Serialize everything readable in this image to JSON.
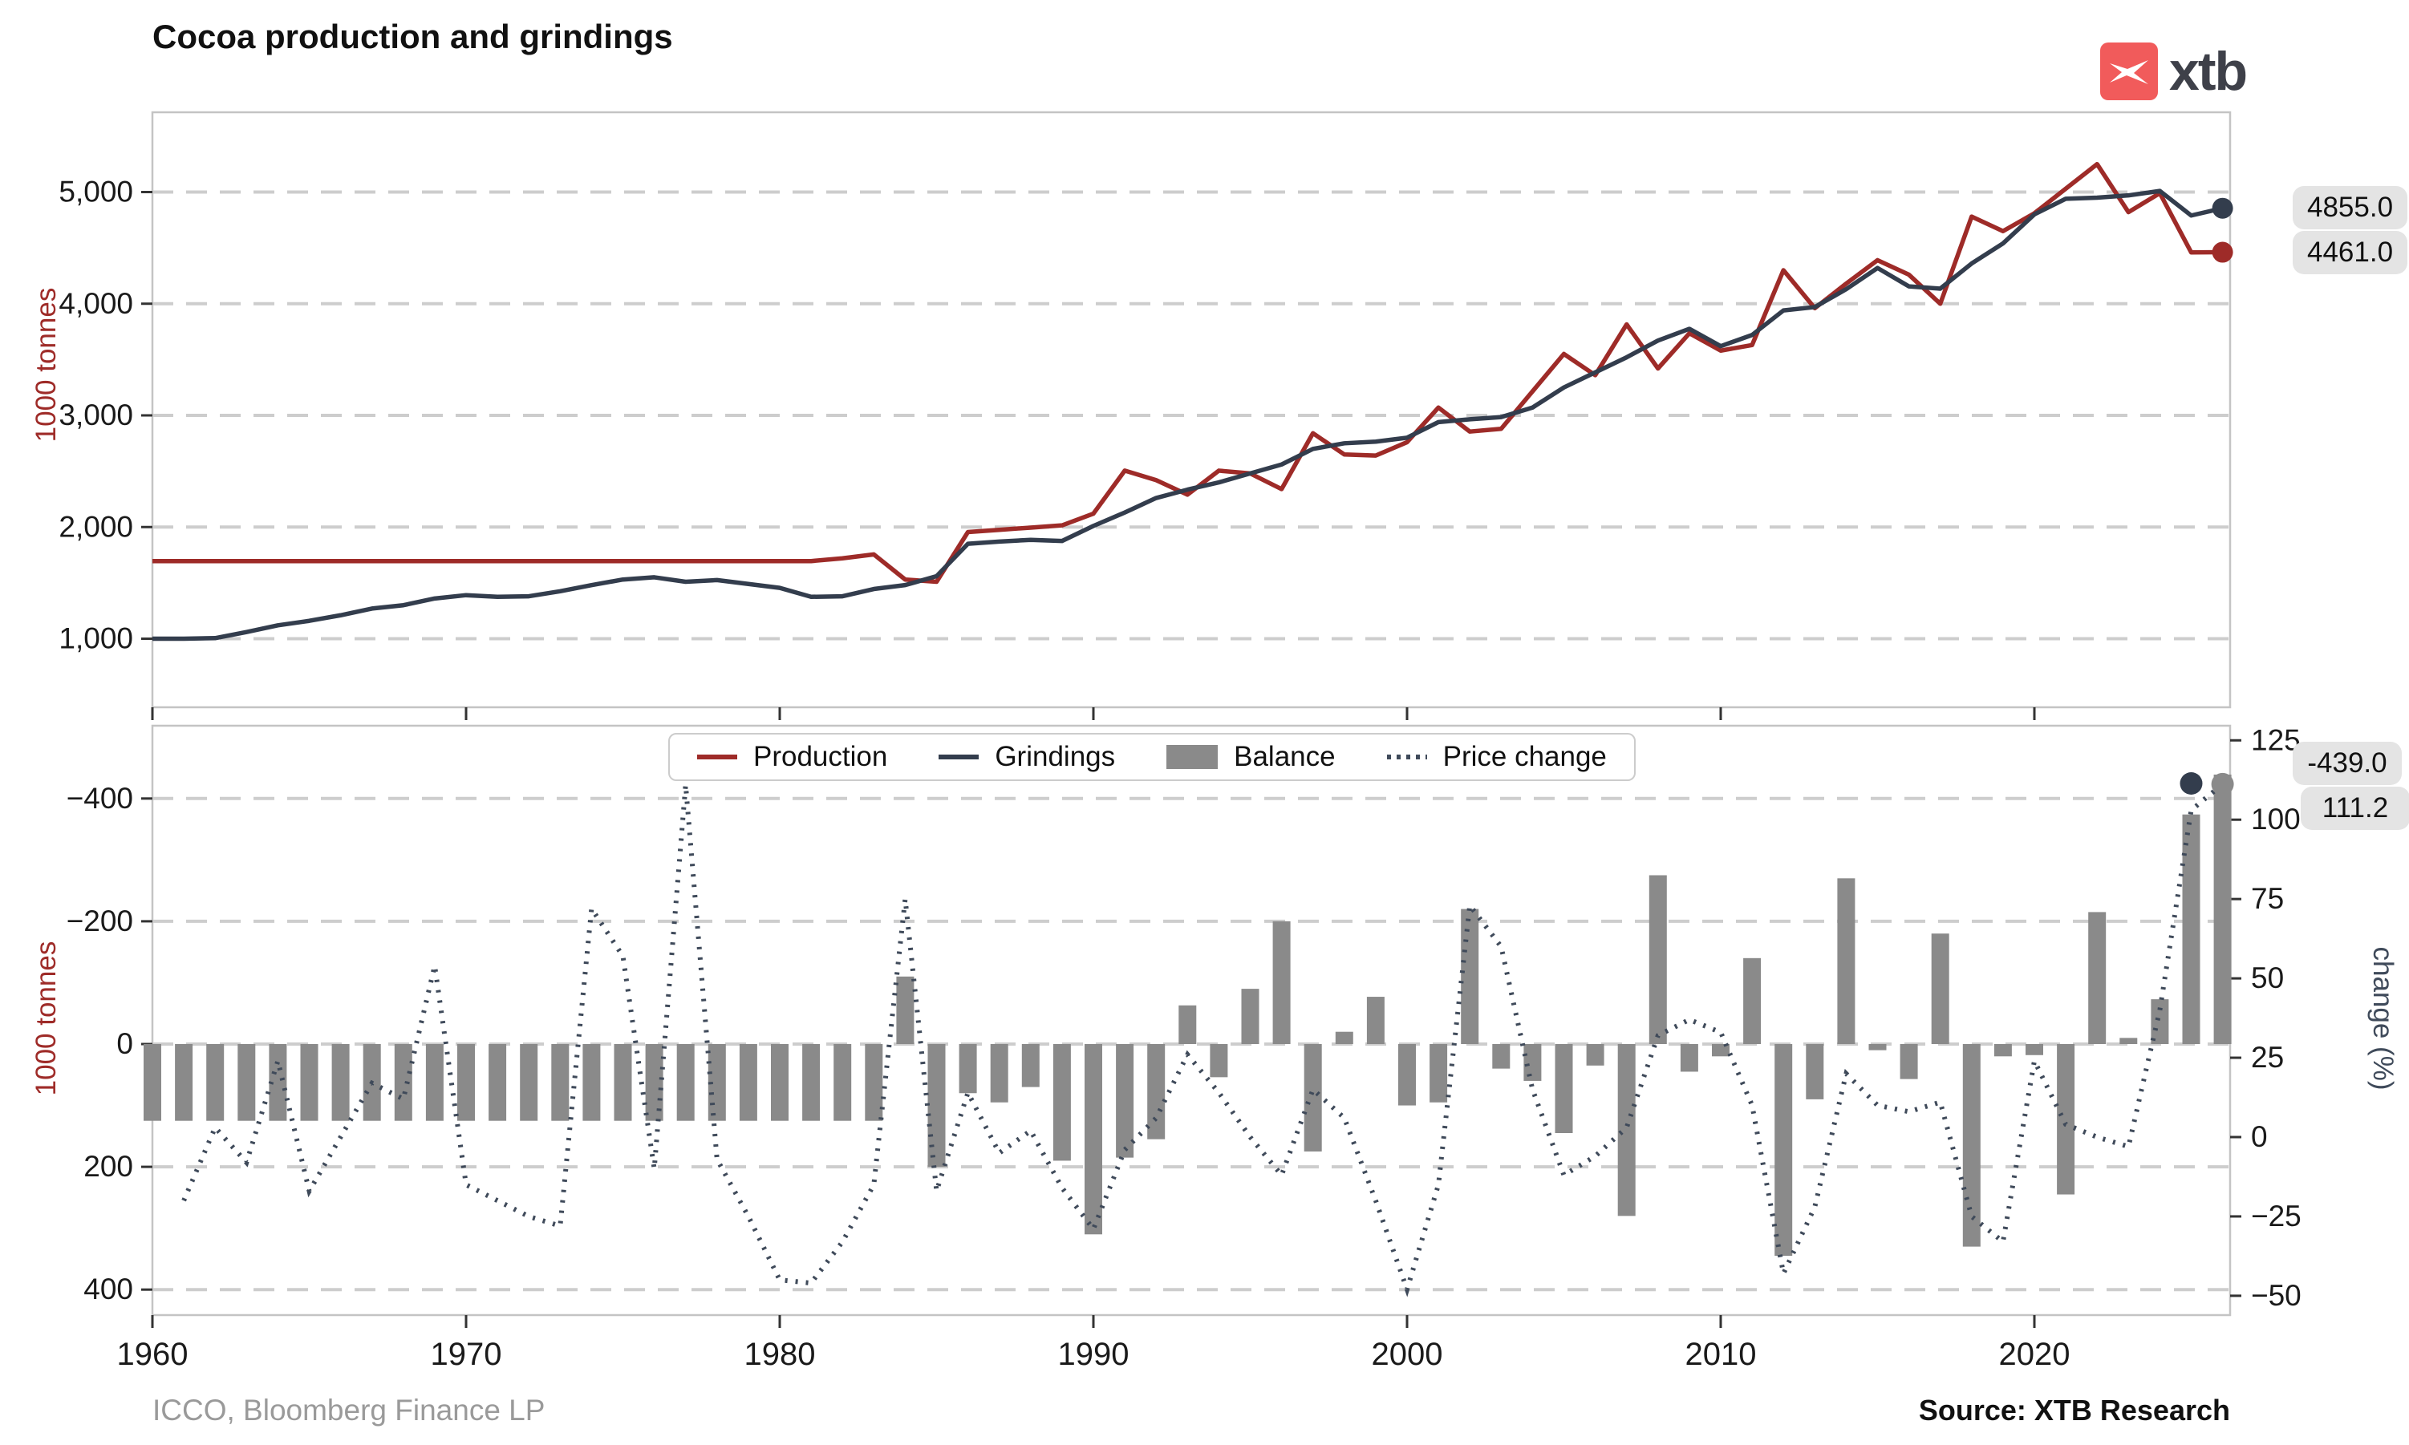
{
  "title": "Cocoa production and grindings",
  "logo": {
    "text": "xtb",
    "mark_color": "#F15B5B",
    "glyph": "x"
  },
  "footer": {
    "sources_left": "ICCO, Bloomberg Finance LP",
    "source_right": "Source: XTB Research"
  },
  "legend": {
    "production_label": "Production",
    "grindings_label": "Grindings",
    "balance_label": "Balance",
    "price_label": "Price change"
  },
  "colors": {
    "production": "#9E2B28",
    "grindings": "#333D4D",
    "balance": "#8A8A8A",
    "price": "#3F4A5A",
    "grid": "#CDCDCD",
    "spine": "#C4C4C4",
    "tick": "#333333",
    "label_box": "#E4E4E4"
  },
  "end_labels": {
    "grindings_end": "4855.0",
    "production_end": "4461.0",
    "balance_end": "-439.0",
    "price_end": "111.2"
  },
  "chart_data": [
    {
      "type": "line",
      "title": "Cocoa production and grindings",
      "ylabel": "1000 tonnes",
      "legend_position": "none",
      "grid": true,
      "x_start": 1960,
      "xticks": [
        1960,
        1970,
        1980,
        1990,
        2000,
        2010,
        2020
      ],
      "yticks": [
        {
          "v": 1000,
          "label": "1,000"
        },
        {
          "v": 2000,
          "label": "2,000"
        },
        {
          "v": 3000,
          "label": "3,000"
        },
        {
          "v": 4000,
          "label": "4,000"
        },
        {
          "v": 5000,
          "label": "5,000"
        }
      ],
      "ylim": [
        380,
        5720
      ],
      "series": [
        {
          "name": "Production",
          "color": "#9E2B28",
          "end_value": 4461.0,
          "values": [
            1695,
            1695,
            1695,
            1695,
            1695,
            1695,
            1695,
            1695,
            1695,
            1695,
            1695,
            1695,
            1695,
            1695,
            1695,
            1695,
            1695,
            1695,
            1695,
            1695,
            1695,
            1695,
            1720,
            1755,
            1530,
            1510,
            1955,
            1975,
            1995,
            2015,
            2120,
            2505,
            2420,
            2290,
            2505,
            2480,
            2340,
            2840,
            2650,
            2640,
            2760,
            3070,
            2855,
            2880,
            3215,
            3550,
            3360,
            3815,
            3420,
            3735,
            3580,
            3630,
            4300,
            3960,
            4180,
            4390,
            4260,
            4000,
            4780,
            4650,
            4810,
            5030,
            5250,
            4820,
            4990,
            4460,
            4461
          ]
        },
        {
          "name": "Grindings",
          "color": "#333D4D",
          "end_value": 4855.0,
          "values": [
            1000,
            1000,
            1005,
            1060,
            1120,
            1160,
            1210,
            1270,
            1300,
            1360,
            1390,
            1375,
            1380,
            1425,
            1480,
            1530,
            1550,
            1510,
            1525,
            1490,
            1455,
            1375,
            1380,
            1445,
            1480,
            1560,
            1850,
            1870,
            1885,
            1875,
            2010,
            2130,
            2260,
            2335,
            2400,
            2480,
            2560,
            2700,
            2750,
            2765,
            2800,
            2940,
            2965,
            2985,
            3070,
            3250,
            3385,
            3520,
            3670,
            3775,
            3620,
            3720,
            3940,
            3970,
            4130,
            4320,
            4155,
            4135,
            4360,
            4540,
            4800,
            4940,
            4950,
            4970,
            5010,
            4790,
            4855
          ]
        }
      ]
    },
    {
      "type": "bar",
      "ylabel": "1000 tonnes",
      "ylabel_right": "change (%)",
      "y_inverted": true,
      "grid": true,
      "x_start": 1960,
      "xticks": [
        1960,
        1970,
        1980,
        1990,
        2000,
        2010,
        2020
      ],
      "yticks": [
        {
          "v": -400,
          "label": "−400"
        },
        {
          "v": -200,
          "label": "−200"
        },
        {
          "v": 0,
          "label": "0"
        },
        {
          "v": 200,
          "label": "200"
        },
        {
          "v": 400,
          "label": "400"
        }
      ],
      "yticks_right": [
        {
          "v": 125,
          "label": "125"
        },
        {
          "v": 100,
          "label": "100"
        },
        {
          "v": 75,
          "label": "75"
        },
        {
          "v": 50,
          "label": "50"
        },
        {
          "v": 25,
          "label": "25"
        },
        {
          "v": 0,
          "label": "0"
        },
        {
          "v": -25,
          "label": "−25"
        },
        {
          "v": -50,
          "label": "−50"
        }
      ],
      "ylim_left": [
        -520,
        440
      ],
      "ylim_right": [
        -56,
        130
      ],
      "series": [
        {
          "name": "Balance",
          "axis": "left",
          "color": "#8A8A8A",
          "end_value": -439.0,
          "values": [
            125,
            125,
            125,
            125,
            125,
            125,
            125,
            125,
            125,
            125,
            125,
            125,
            125,
            125,
            125,
            125,
            125,
            125,
            125,
            125,
            125,
            125,
            125,
            125,
            -110,
            200,
            80,
            95,
            70,
            190,
            310,
            185,
            155,
            -63,
            54,
            -90,
            -200,
            175,
            -20,
            -77,
            100,
            95,
            -220,
            40,
            60,
            145,
            35,
            280,
            -275,
            45,
            20,
            -140,
            345,
            90,
            -270,
            10,
            57,
            -180,
            330,
            20,
            18,
            245,
            -215,
            -10,
            -73,
            -374,
            -439
          ]
        },
        {
          "name": "Price change",
          "axis": "right",
          "color": "#3F4A5A",
          "x_start": 1961,
          "end_value": 111.2,
          "values": [
            -20,
            3,
            -8,
            24,
            -17,
            0,
            17,
            12,
            54,
            -15,
            -20,
            -25,
            -28,
            72,
            57,
            -10,
            111,
            -7,
            -25,
            -45,
            -46,
            -33,
            -15,
            75,
            -17,
            14,
            -5,
            2,
            -16,
            -29,
            -4,
            6,
            26,
            14,
            0,
            -12,
            15,
            6,
            -20,
            -48,
            -15,
            73,
            60,
            15,
            -12,
            -6,
            3,
            32,
            37,
            33,
            10,
            -43,
            -22,
            20,
            10,
            8,
            11,
            -25,
            -33,
            24,
            4,
            0,
            -3,
            40,
            103,
            111.2
          ]
        }
      ]
    }
  ]
}
